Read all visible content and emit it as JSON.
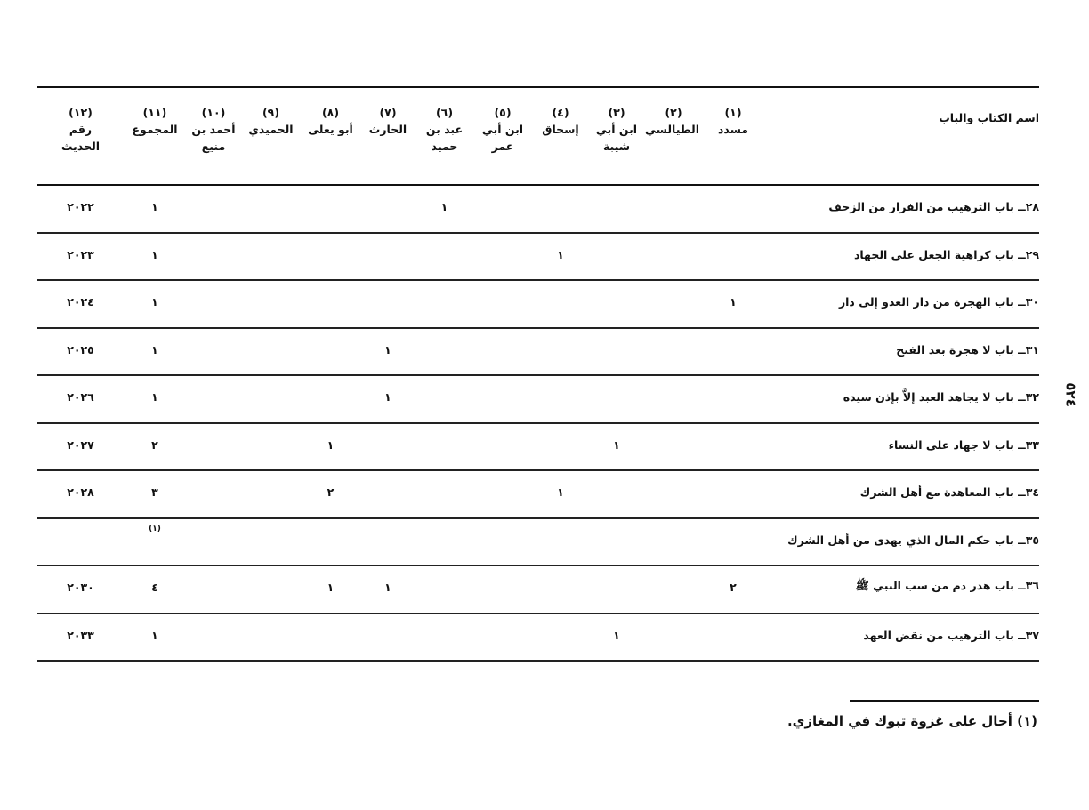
{
  "page_number": "٥٢٤",
  "table": {
    "headers": [
      {
        "num": "",
        "label": "اسم الكتاب والباب"
      },
      {
        "num": "(١)",
        "label": "مسدد"
      },
      {
        "num": "(٢)",
        "label": "الطيالسي"
      },
      {
        "num": "(٣)",
        "label": "ابن أبي شيبة"
      },
      {
        "num": "(٤)",
        "label": "إسحاق"
      },
      {
        "num": "(٥)",
        "label": "ابن أبي عمر"
      },
      {
        "num": "(٦)",
        "label": "عبد بن حميد"
      },
      {
        "num": "(٧)",
        "label": "الحارث"
      },
      {
        "num": "(٨)",
        "label": "أبو يعلى"
      },
      {
        "num": "(٩)",
        "label": "الحميدي"
      },
      {
        "num": "(١٠)",
        "label": "أحمد بن منيع"
      },
      {
        "num": "(١١)",
        "label": "المجموع"
      },
      {
        "num": "(١٢)",
        "label": "رقم الحديث"
      }
    ],
    "rows": [
      [
        "٢٨ــ باب الترهيب من الفرار من الزحف",
        "",
        "",
        "",
        "",
        "",
        "١",
        "",
        "",
        "",
        "",
        "١",
        "٢٠٢٢"
      ],
      [
        "٢٩ــ باب كراهية الجعل على الجهاد",
        "",
        "",
        "",
        "١",
        "",
        "",
        "",
        "",
        "",
        "",
        "١",
        "٢٠٢٣"
      ],
      [
        "٣٠ــ باب الهجرة من دار العدو إلى دار",
        "١",
        "",
        "",
        "",
        "",
        "",
        "",
        "",
        "",
        "",
        "١",
        "٢٠٢٤"
      ],
      [
        "٣١ــ باب لا هجرة بعد الفتح",
        "",
        "",
        "",
        "",
        "",
        "",
        "١",
        "",
        "",
        "",
        "١",
        "٢٠٢٥"
      ],
      [
        "٣٢ــ باب لا يجاهد العبد إلاَّ بإذن سيده",
        "",
        "",
        "",
        "",
        "",
        "",
        "١",
        "",
        "",
        "",
        "١",
        "٢٠٢٦"
      ],
      [
        "٣٣ــ باب لا جهاد على النساء",
        "",
        "",
        "١",
        "",
        "",
        "",
        "",
        "١",
        "",
        "",
        "٢",
        "٢٠٢٧"
      ],
      [
        "٣٤ــ باب المعاهدة مع أهل الشرك",
        "",
        "",
        "",
        "١",
        "",
        "",
        "",
        "٢",
        "",
        "",
        "٣",
        "٢٠٢٨"
      ],
      [
        "٣٥ــ باب حكم المال الذي يهدى من أهل الشرك",
        "",
        "",
        "",
        "",
        "",
        "",
        "",
        "",
        "",
        "",
        "",
        ""
      ],
      [
        "٣٦ــ باب هدر دم من سب النبي ﷺ",
        "٢",
        "",
        "",
        "",
        "",
        "",
        "١",
        "١",
        "",
        "",
        "٤",
        "٢٠٣٠"
      ],
      [
        "٣٧ــ باب الترهيب من نقض العهد",
        "",
        "",
        "١",
        "",
        "",
        "",
        "",
        "",
        "",
        "",
        "١",
        "٢٠٣٣"
      ]
    ],
    "row35_footnote_marker": "(١)"
  },
  "footnote": "(١) أحال على غزوة تبوك في المغازي."
}
